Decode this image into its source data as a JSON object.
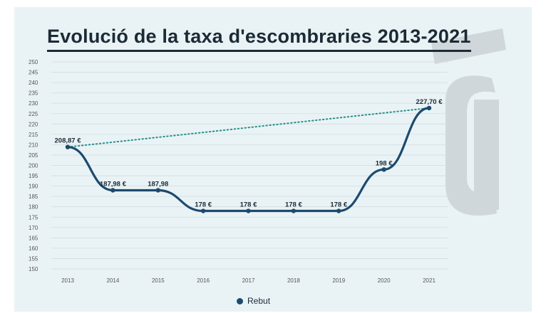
{
  "title": "Evolució de la taxa d'escombraries 2013-2021",
  "colors": {
    "line": "#1d4a6e",
    "trend": "#2a8f8a",
    "grid": "#d2dde2",
    "background": "#e9f3f5",
    "watermark": "#cfd7da"
  },
  "watermark_icon": "brand-logo-a-glyph",
  "chart_data": {
    "type": "line",
    "title": "Evolució de la taxa d'escombraries 2013-2021",
    "categories": [
      "2013",
      "2014",
      "2015",
      "2016",
      "2017",
      "2018",
      "2019",
      "2020",
      "2021"
    ],
    "series": [
      {
        "name": "Rebut",
        "values": [
          208.87,
          187.98,
          187.98,
          178,
          178,
          178,
          178,
          198,
          227.7
        ],
        "labels": [
          "208,87 €",
          "187,98 €",
          "187,98",
          "178 €",
          "178 €",
          "178 €",
          "178 €",
          "198 €",
          "227,70 €"
        ]
      }
    ],
    "trendline": {
      "from": "2013",
      "to": "2021",
      "style": "dotted"
    },
    "ylim": [
      150,
      250
    ],
    "yticks": [
      150,
      155,
      160,
      165,
      170,
      175,
      180,
      185,
      190,
      195,
      200,
      205,
      210,
      215,
      220,
      225,
      230,
      235,
      240,
      245,
      250
    ],
    "xlabel": "",
    "ylabel": "",
    "grid": true,
    "legend": {
      "position": "bottom-center",
      "entries": [
        "Rebut"
      ]
    }
  }
}
